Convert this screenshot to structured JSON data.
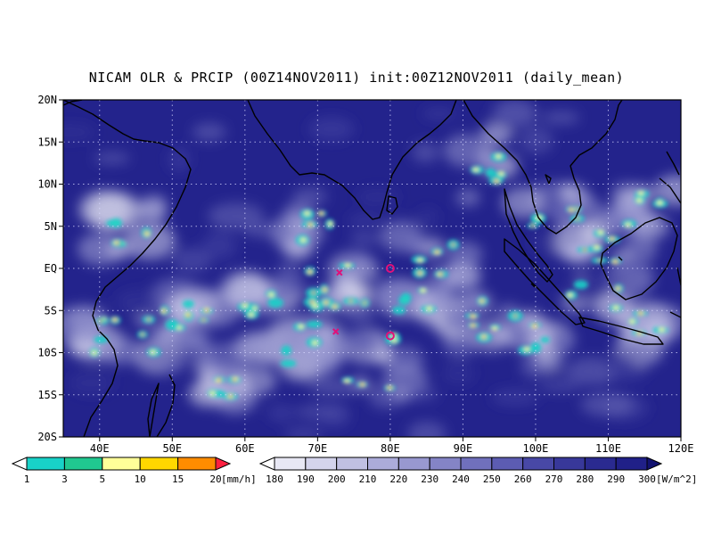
{
  "title": "NICAM OLR & PRCIP (00Z14NOV2011) init:00Z12NOV2011 (daily_mean)",
  "map": {
    "lon_range": [
      35,
      120
    ],
    "lat_range": [
      -20,
      20
    ],
    "lat_ticks": [
      {
        "value": 20,
        "label": "20N"
      },
      {
        "value": 15,
        "label": "15N"
      },
      {
        "value": 10,
        "label": "10N"
      },
      {
        "value": 5,
        "label": "5N"
      },
      {
        "value": 0,
        "label": "EQ"
      },
      {
        "value": -5,
        "label": "5S"
      },
      {
        "value": -10,
        "label": "10S"
      },
      {
        "value": -15,
        "label": "15S"
      },
      {
        "value": -20,
        "label": "20S"
      }
    ],
    "lon_ticks": [
      {
        "value": 40,
        "label": "40E"
      },
      {
        "value": 50,
        "label": "50E"
      },
      {
        "value": 60,
        "label": "60E"
      },
      {
        "value": 70,
        "label": "70E"
      },
      {
        "value": 80,
        "label": "80E"
      },
      {
        "value": 90,
        "label": "90E"
      },
      {
        "value": 100,
        "label": "100E"
      },
      {
        "value": 110,
        "label": "110E"
      },
      {
        "value": 120,
        "label": "120E"
      }
    ],
    "background_color": "#23238c",
    "markers": [
      {
        "type": "x",
        "lon": 73,
        "lat": -0.5,
        "color": "#e0107a"
      },
      {
        "type": "x",
        "lon": 72.5,
        "lat": -7.5,
        "color": "#e0107a"
      },
      {
        "type": "o",
        "lon": 80,
        "lat": 0,
        "color": "#e0107a"
      },
      {
        "type": "o",
        "lon": 80,
        "lat": -8,
        "color": "#e0107a"
      }
    ]
  },
  "precip_colorbar": {
    "labels": [
      "1",
      "3",
      "5",
      "10",
      "15",
      "20"
    ],
    "unit": "[mm/h]",
    "colors": [
      "#ffffff",
      "#18d2c8",
      "#20c890",
      "#ffff99",
      "#ffd700",
      "#ff8c00",
      "#ff2040"
    ]
  },
  "olr_colorbar": {
    "labels": [
      "180",
      "190",
      "200",
      "210",
      "220",
      "230",
      "240",
      "250",
      "260",
      "270",
      "280",
      "290",
      "300"
    ],
    "unit": "[W/m^2]",
    "colors": [
      "#ffffff",
      "#e8e8f4",
      "#d4d4ec",
      "#c0c0e2",
      "#acacda",
      "#9898d0",
      "#8484c6",
      "#7070bc",
      "#5c5cb2",
      "#4848a6",
      "#38389a",
      "#2a2a90",
      "#202088",
      "#121270"
    ]
  }
}
